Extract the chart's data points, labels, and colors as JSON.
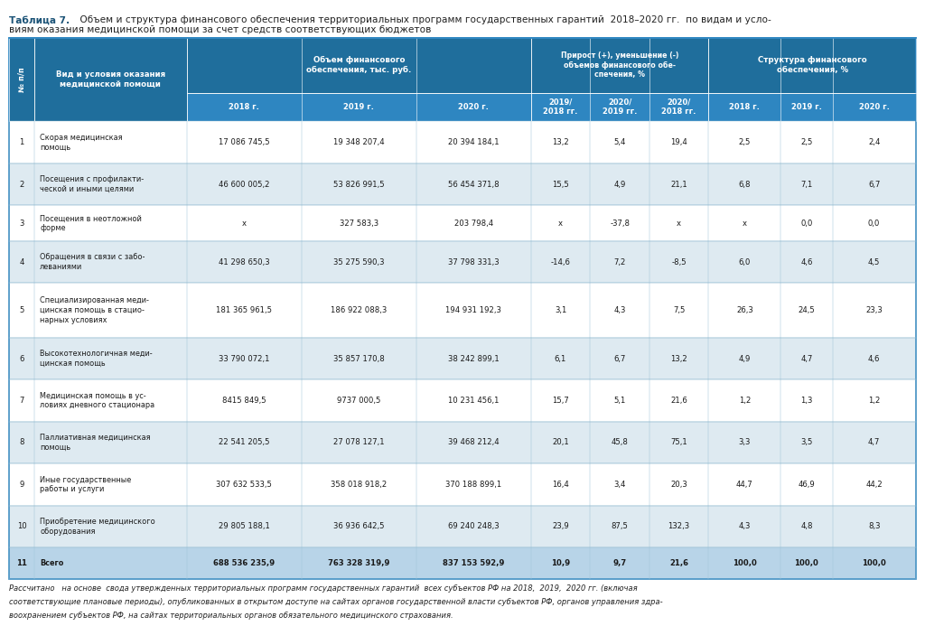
{
  "title_bold": "Таблица 7.",
  "title_rest": " Объем и структура финансового обеспечения территориальных программ государственных гарантий  2018–2020 гг.  по видам и условиям оказания медицинской помощи за счет средств соответствующих бюджетов",
  "rows": [
    {
      "n": "1",
      "name": "Скорая медицинская\nпомощь",
      "v2018": "17 086 745,5",
      "v2019": "19 348 207,4",
      "v2020": "20 394 184,1",
      "g1": "13,2",
      "g2": "5,4",
      "g3": "19,4",
      "s1": "2,5",
      "s2": "2,5",
      "s3": "2,4",
      "bold": false
    },
    {
      "n": "2",
      "name": "Посещения с профилакти-\nческой и иными целями",
      "v2018": "46 600 005,2",
      "v2019": "53 826 991,5",
      "v2020": "56 454 371,8",
      "g1": "15,5",
      "g2": "4,9",
      "g3": "21,1",
      "s1": "6,8",
      "s2": "7,1",
      "s3": "6,7",
      "bold": false
    },
    {
      "n": "3",
      "name": "Посещения в неотложной\nформе",
      "v2018": "x",
      "v2019": "327 583,3",
      "v2020": "203 798,4",
      "g1": "x",
      "g2": "-37,8",
      "g3": "x",
      "s1": "x",
      "s2": "0,0",
      "s3": "0,0",
      "bold": false
    },
    {
      "n": "4",
      "name": "Обращения в связи с забо-\nлеваниями",
      "v2018": "41 298 650,3",
      "v2019": "35 275 590,3",
      "v2020": "37 798 331,3",
      "g1": "-14,6",
      "g2": "7,2",
      "g3": "-8,5",
      "s1": "6,0",
      "s2": "4,6",
      "s3": "4,5",
      "bold": false
    },
    {
      "n": "5",
      "name": "Специализированная меди-\nцинская помощь в стацио-\nнарных условиях",
      "v2018": "181 365 961,5",
      "v2019": "186 922 088,3",
      "v2020": "194 931 192,3",
      "g1": "3,1",
      "g2": "4,3",
      "g3": "7,5",
      "s1": "26,3",
      "s2": "24,5",
      "s3": "23,3",
      "bold": false
    },
    {
      "n": "6",
      "name": "Высокотехнологичная меди-\nцинская помощь",
      "v2018": "33 790 072,1",
      "v2019": "35 857 170,8",
      "v2020": "38 242 899,1",
      "g1": "6,1",
      "g2": "6,7",
      "g3": "13,2",
      "s1": "4,9",
      "s2": "4,7",
      "s3": "4,6",
      "bold": false
    },
    {
      "n": "7",
      "name": "Медицинская помощь в ус-\nловиях дневного стационара",
      "v2018": "8415 849,5",
      "v2019": "9737 000,5",
      "v2020": "10 231 456,1",
      "g1": "15,7",
      "g2": "5,1",
      "g3": "21,6",
      "s1": "1,2",
      "s2": "1,3",
      "s3": "1,2",
      "bold": false
    },
    {
      "n": "8",
      "name": "Паллиативная медицинская\nпомощь",
      "v2018": "22 541 205,5",
      "v2019": "27 078 127,1",
      "v2020": "39 468 212,4",
      "g1": "20,1",
      "g2": "45,8",
      "g3": "75,1",
      "s1": "3,3",
      "s2": "3,5",
      "s3": "4,7",
      "bold": false
    },
    {
      "n": "9",
      "name": "Иные государственные\nработы и услуги",
      "v2018": "307 632 533,5",
      "v2019": "358 018 918,2",
      "v2020": "370 188 899,1",
      "g1": "16,4",
      "g2": "3,4",
      "g3": "20,3",
      "s1": "44,7",
      "s2": "46,9",
      "s3": "44,2",
      "bold": false
    },
    {
      "n": "10",
      "name": "Приобретение медицинского\nоборудования",
      "v2018": "29 805 188,1",
      "v2019": "36 936 642,5",
      "v2020": "69 240 248,3",
      "g1": "23,9",
      "g2": "87,5",
      "g3": "132,3",
      "s1": "4,3",
      "s2": "4,8",
      "s3": "8,3",
      "bold": false
    },
    {
      "n": "11",
      "name": "Всего",
      "v2018": "688 536 235,9",
      "v2019": "763 328 319,9",
      "v2020": "837 153 592,9",
      "g1": "10,9",
      "g2": "9,7",
      "g3": "21,6",
      "s1": "100,0",
      "s2": "100,0",
      "s3": "100,0",
      "bold": true
    }
  ],
  "footnote_line1": "Рассчитано   на основе  свода утвержденных территориальных программ государственных гарантий  всех субъектов РФ на 2018,  2019,  2020 гг. (включая",
  "footnote_line2": "соответствующие плановые периоды), опубликованных в открытом доступе на сайтах органов государственной власти субъектов РФ, органов управления здра-",
  "footnote_line3": "воохранением субъектов РФ, на сайтах территориальных органов обязательного медицинского страхования.",
  "header_bg": "#1f6e9c",
  "subheader_bg": "#2e86c1",
  "row_bg_white": "#ffffff",
  "row_bg_blue": "#deeaf1",
  "last_row_bg": "#b8d4e8",
  "header_text_color": "#ffffff",
  "body_text_color": "#1a1a1a",
  "border_color": "#2e86c1",
  "sep_color": "#a0c4d8"
}
